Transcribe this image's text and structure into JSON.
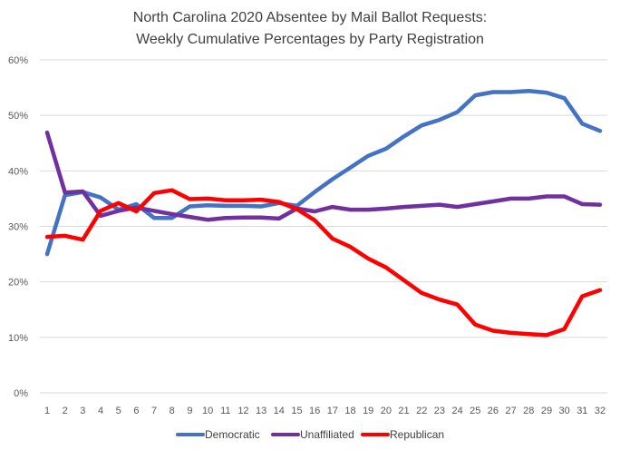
{
  "chart_data": {
    "type": "line",
    "title_lines": [
      "North Carolina 2020 Absentee by Mail Ballot Requests:",
      "Weekly Cumulative Percentages by Party Registration"
    ],
    "xlabel": "",
    "ylabel": "",
    "ylim": [
      0,
      60
    ],
    "yticks": [
      0,
      10,
      20,
      30,
      40,
      50,
      60
    ],
    "ytick_labels": [
      "0%",
      "10%",
      "20%",
      "30%",
      "40%",
      "50%",
      "60%"
    ],
    "grid": true,
    "legend_position": "bottom",
    "x": [
      1,
      2,
      3,
      4,
      5,
      6,
      7,
      8,
      9,
      10,
      11,
      12,
      13,
      14,
      15,
      16,
      17,
      18,
      19,
      20,
      21,
      22,
      23,
      24,
      25,
      26,
      27,
      28,
      29,
      30,
      31,
      32
    ],
    "series": [
      {
        "name": "Democratic",
        "color": "#4472c4",
        "values": [
          25.0,
          35.6,
          36.2,
          35.2,
          33.0,
          34.0,
          31.5,
          31.5,
          33.6,
          33.8,
          33.7,
          33.7,
          33.6,
          34.2,
          33.7,
          36.2,
          38.5,
          40.6,
          42.7,
          44.0,
          46.2,
          48.2,
          49.2,
          50.6,
          53.6,
          54.2,
          54.2,
          54.4,
          54.1,
          53.1,
          48.5,
          47.2
        ]
      },
      {
        "name": "Unaffiliated",
        "color": "#7030a0",
        "values": [
          46.9,
          36.1,
          36.3,
          31.9,
          32.8,
          33.4,
          32.8,
          32.2,
          31.7,
          31.2,
          31.5,
          31.6,
          31.6,
          31.4,
          33.2,
          32.7,
          33.5,
          33.0,
          33.0,
          33.2,
          33.5,
          33.7,
          33.9,
          33.5,
          34.0,
          34.5,
          35.0,
          35.0,
          35.4,
          35.4,
          34.0,
          33.9
        ]
      },
      {
        "name": "Republican",
        "color": "#ff0000",
        "values": [
          28.1,
          28.3,
          27.6,
          32.8,
          34.2,
          32.7,
          36.0,
          36.5,
          34.9,
          35.0,
          34.7,
          34.7,
          34.8,
          34.4,
          33.1,
          31.1,
          27.8,
          26.3,
          24.2,
          22.6,
          20.3,
          18.0,
          16.8,
          15.9,
          12.3,
          11.2,
          10.8,
          10.6,
          10.4,
          11.5,
          17.4,
          18.5
        ]
      }
    ]
  }
}
